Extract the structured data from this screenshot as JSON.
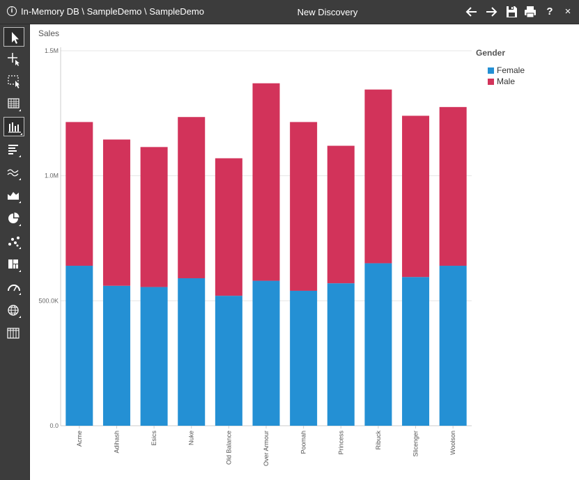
{
  "window": {
    "path": "In-Memory DB \\ SampleDemo \\ SampleDemo",
    "title": "New Discovery",
    "help": "?",
    "close": "×"
  },
  "toolbar_icons": [
    "back-arrow-icon",
    "forward-arrow-icon",
    "save-icon",
    "print-icon",
    "help-icon",
    "close-icon"
  ],
  "sidebar_tools": [
    "select-pointer-icon",
    "move-pointer-icon",
    "region-select-icon",
    "grid-chart-icon",
    "column-chart-icon",
    "bar-chart-icon",
    "line-chart-icon",
    "area-chart-icon",
    "pie-chart-icon",
    "scatter-chart-icon",
    "treemap-chart-icon",
    "gauge-chart-icon",
    "map-globe-icon",
    "pivot-table-icon"
  ],
  "sidebar_active_index": 4,
  "colors": {
    "female": "#2490d4",
    "male": "#d2335a",
    "chrome": "#3c3c3c"
  },
  "chart_data": {
    "type": "bar",
    "stacked": true,
    "ylabel": "Sales",
    "ylim": [
      0,
      1500000
    ],
    "yticks": [
      {
        "value": 0,
        "label": "0.0"
      },
      {
        "value": 500000,
        "label": "500.0K"
      },
      {
        "value": 1000000,
        "label": "1.0M"
      },
      {
        "value": 1500000,
        "label": "1.5M"
      }
    ],
    "categories": [
      "Acme",
      "Adihash",
      "Esics",
      "Nuke",
      "Old Balance",
      "Over Armour",
      "Poomah",
      "Princess",
      "Ribuck",
      "Slicenger",
      "Woolson"
    ],
    "legend_title": "Gender",
    "legend_position": "top-right",
    "series": [
      {
        "name": "Female",
        "color": "#2490d4",
        "values": [
          640000,
          560000,
          555000,
          590000,
          520000,
          580000,
          540000,
          570000,
          650000,
          595000,
          640000
        ]
      },
      {
        "name": "Male",
        "color": "#d2335a",
        "values": [
          575000,
          585000,
          560000,
          645000,
          550000,
          790000,
          675000,
          550000,
          695000,
          645000,
          635000
        ]
      }
    ],
    "grid": true
  }
}
